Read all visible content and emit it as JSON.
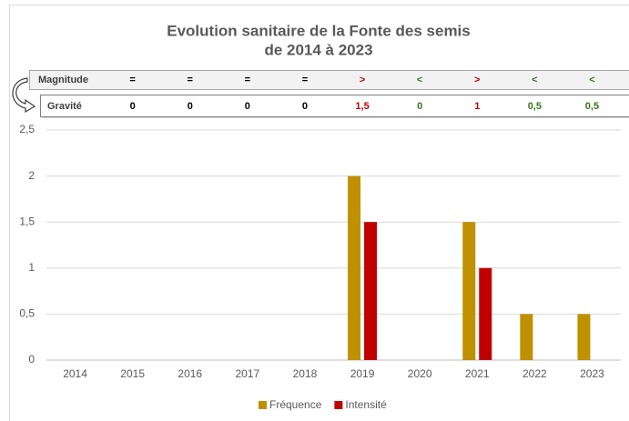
{
  "chart_data": {
    "type": "bar",
    "title": "Evolution sanitaire de la Fonte des semis",
    "subtitle": "de 2014 à 2023",
    "categories": [
      "2014",
      "2015",
      "2016",
      "2017",
      "2018",
      "2019",
      "2020",
      "2021",
      "2022",
      "2023"
    ],
    "series": [
      {
        "name": "Fréquence",
        "color": "#bf9000",
        "values": [
          0,
          0,
          0,
          0,
          0,
          2,
          0,
          1.5,
          0.5,
          0.5
        ]
      },
      {
        "name": "Intensité",
        "color": "#c00000",
        "values": [
          0,
          0,
          0,
          0,
          0,
          1.5,
          0,
          1,
          0,
          0
        ]
      }
    ],
    "ylim": [
      0,
      2.5
    ],
    "yticks": [
      0,
      {
        "value": 0.5,
        "label": "0,5"
      },
      1,
      {
        "value": 1.5,
        "label": "1,5"
      },
      2,
      {
        "value": 2.5,
        "label": "2,5"
      }
    ],
    "grid": true,
    "legend": "bottom",
    "table": {
      "rows": [
        {
          "label": "Magnitude",
          "cells": [
            "=",
            "=",
            "=",
            "=",
            ">",
            "<",
            ">",
            "<",
            "<"
          ],
          "colors": [
            "#000000",
            "#000000",
            "#000000",
            "#000000",
            "#c00000",
            "#38761d",
            "#c00000",
            "#38761d",
            "#38761d"
          ]
        },
        {
          "label": "Gravité",
          "cells": [
            "0",
            "0",
            "0",
            "0",
            "1,5",
            "0",
            "1",
            "0,5",
            "0,5"
          ],
          "colors": [
            "#000000",
            "#000000",
            "#000000",
            "#000000",
            "#c00000",
            "#38761d",
            "#c00000",
            "#38761d",
            "#38761d"
          ]
        }
      ]
    }
  }
}
